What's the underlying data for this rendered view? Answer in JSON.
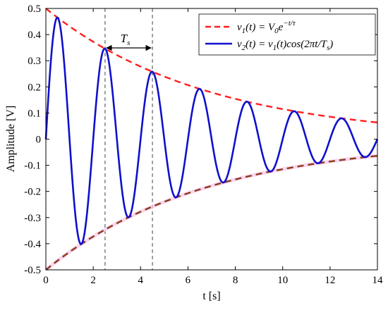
{
  "chart_data": {
    "type": "line",
    "xlabel": "t [s]",
    "ylabel": "Amplitude [V]",
    "xlim": [
      0,
      14
    ],
    "ylim": [
      -0.5,
      0.5
    ],
    "x_ticks": [
      "0",
      "2",
      "4",
      "6",
      "8",
      "10",
      "12",
      "14"
    ],
    "y_ticks": [
      "0.5",
      "0.4",
      "0.3",
      "0.2",
      "0.1",
      "0",
      "-0.1",
      "-0.2",
      "-0.3",
      "-0.4",
      "-0.5"
    ],
    "grid": false,
    "legend_position": "top-right",
    "parameters": {
      "V0": 0.5,
      "tau": 6.8,
      "Ts": 2
    },
    "series": [
      {
        "name": "v1(t) = V0 e^(-t/τ)",
        "style": "dashed",
        "color": "#ff1f1f",
        "description": "upper envelope V0·exp(-t/τ) and mirrored lower envelope",
        "x": [
          0,
          1,
          2,
          3,
          4,
          5,
          6,
          7,
          8,
          9,
          10,
          11,
          12,
          13,
          14
        ],
        "values": [
          0.5,
          0.432,
          0.373,
          0.322,
          0.278,
          0.24,
          0.207,
          0.179,
          0.154,
          0.133,
          0.115,
          0.099,
          0.086,
          0.074,
          0.064
        ]
      },
      {
        "name": "v2(t) = v1(t)cos(2πt/Ts)",
        "style": "solid",
        "color": "#1010cc",
        "x": [
          0,
          0.5,
          1.5,
          2.5,
          3.5,
          4.5,
          5.5,
          6.5,
          7.5,
          8.5,
          9.5,
          10.5,
          11.5,
          12.5,
          13.5,
          14
        ],
        "values": [
          0,
          0.45,
          -0.37,
          0.3,
          -0.25,
          0.2,
          -0.165,
          0.135,
          -0.11,
          0.09,
          -0.075,
          0.06,
          -0.05,
          0.04,
          -0.015,
          0
        ]
      }
    ],
    "lower_envelope_color": "#8b3a1a",
    "markers": {
      "vlines_x": [
        2.5,
        4.5
      ],
      "period_label": "T",
      "period_label_sub": "s"
    },
    "legend": [
      {
        "main": "v",
        "sub": "1",
        "rest": "(t) = V",
        "rest_sub": "0",
        "rest2": "e",
        "sup": "−t/τ"
      },
      {
        "main": "v",
        "sub": "2",
        "rest": "(t) = v",
        "rest_sub": "1",
        "rest2": "(t)cos(2πt/T",
        "rest2_sub": "s",
        "rest3": ")"
      }
    ]
  }
}
